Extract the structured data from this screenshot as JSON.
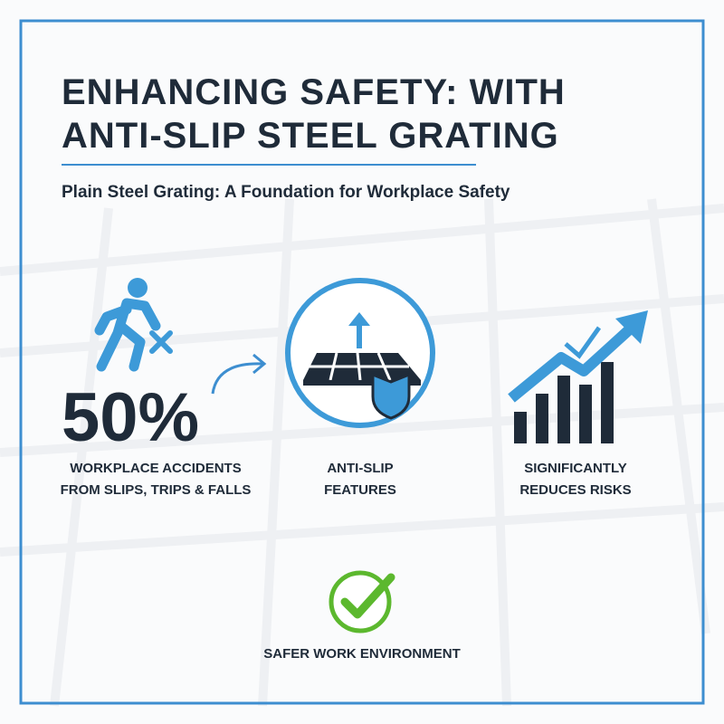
{
  "header": {
    "title_lines": [
      "ENHANCING SAFETY: WITH",
      "ANTI-SLIP STEEL GRATING"
    ],
    "subtitle": "Plain Steel Grating: A Foundation for Workplace Safety"
  },
  "stat": {
    "value": "50%",
    "label_lines": [
      "WORKPLACE ACCIDENTS",
      "FROM SLIPS, TRIPS & FALLS"
    ]
  },
  "features": [
    {
      "label_lines": [
        "ANTI-SLIP",
        "FEATURES"
      ]
    },
    {
      "label_lines": [
        "SIGNIFICANTLY",
        "REDUCES RISKS"
      ]
    }
  ],
  "footer": {
    "label": "SAFER WORK ENVIRONMENT"
  }
}
